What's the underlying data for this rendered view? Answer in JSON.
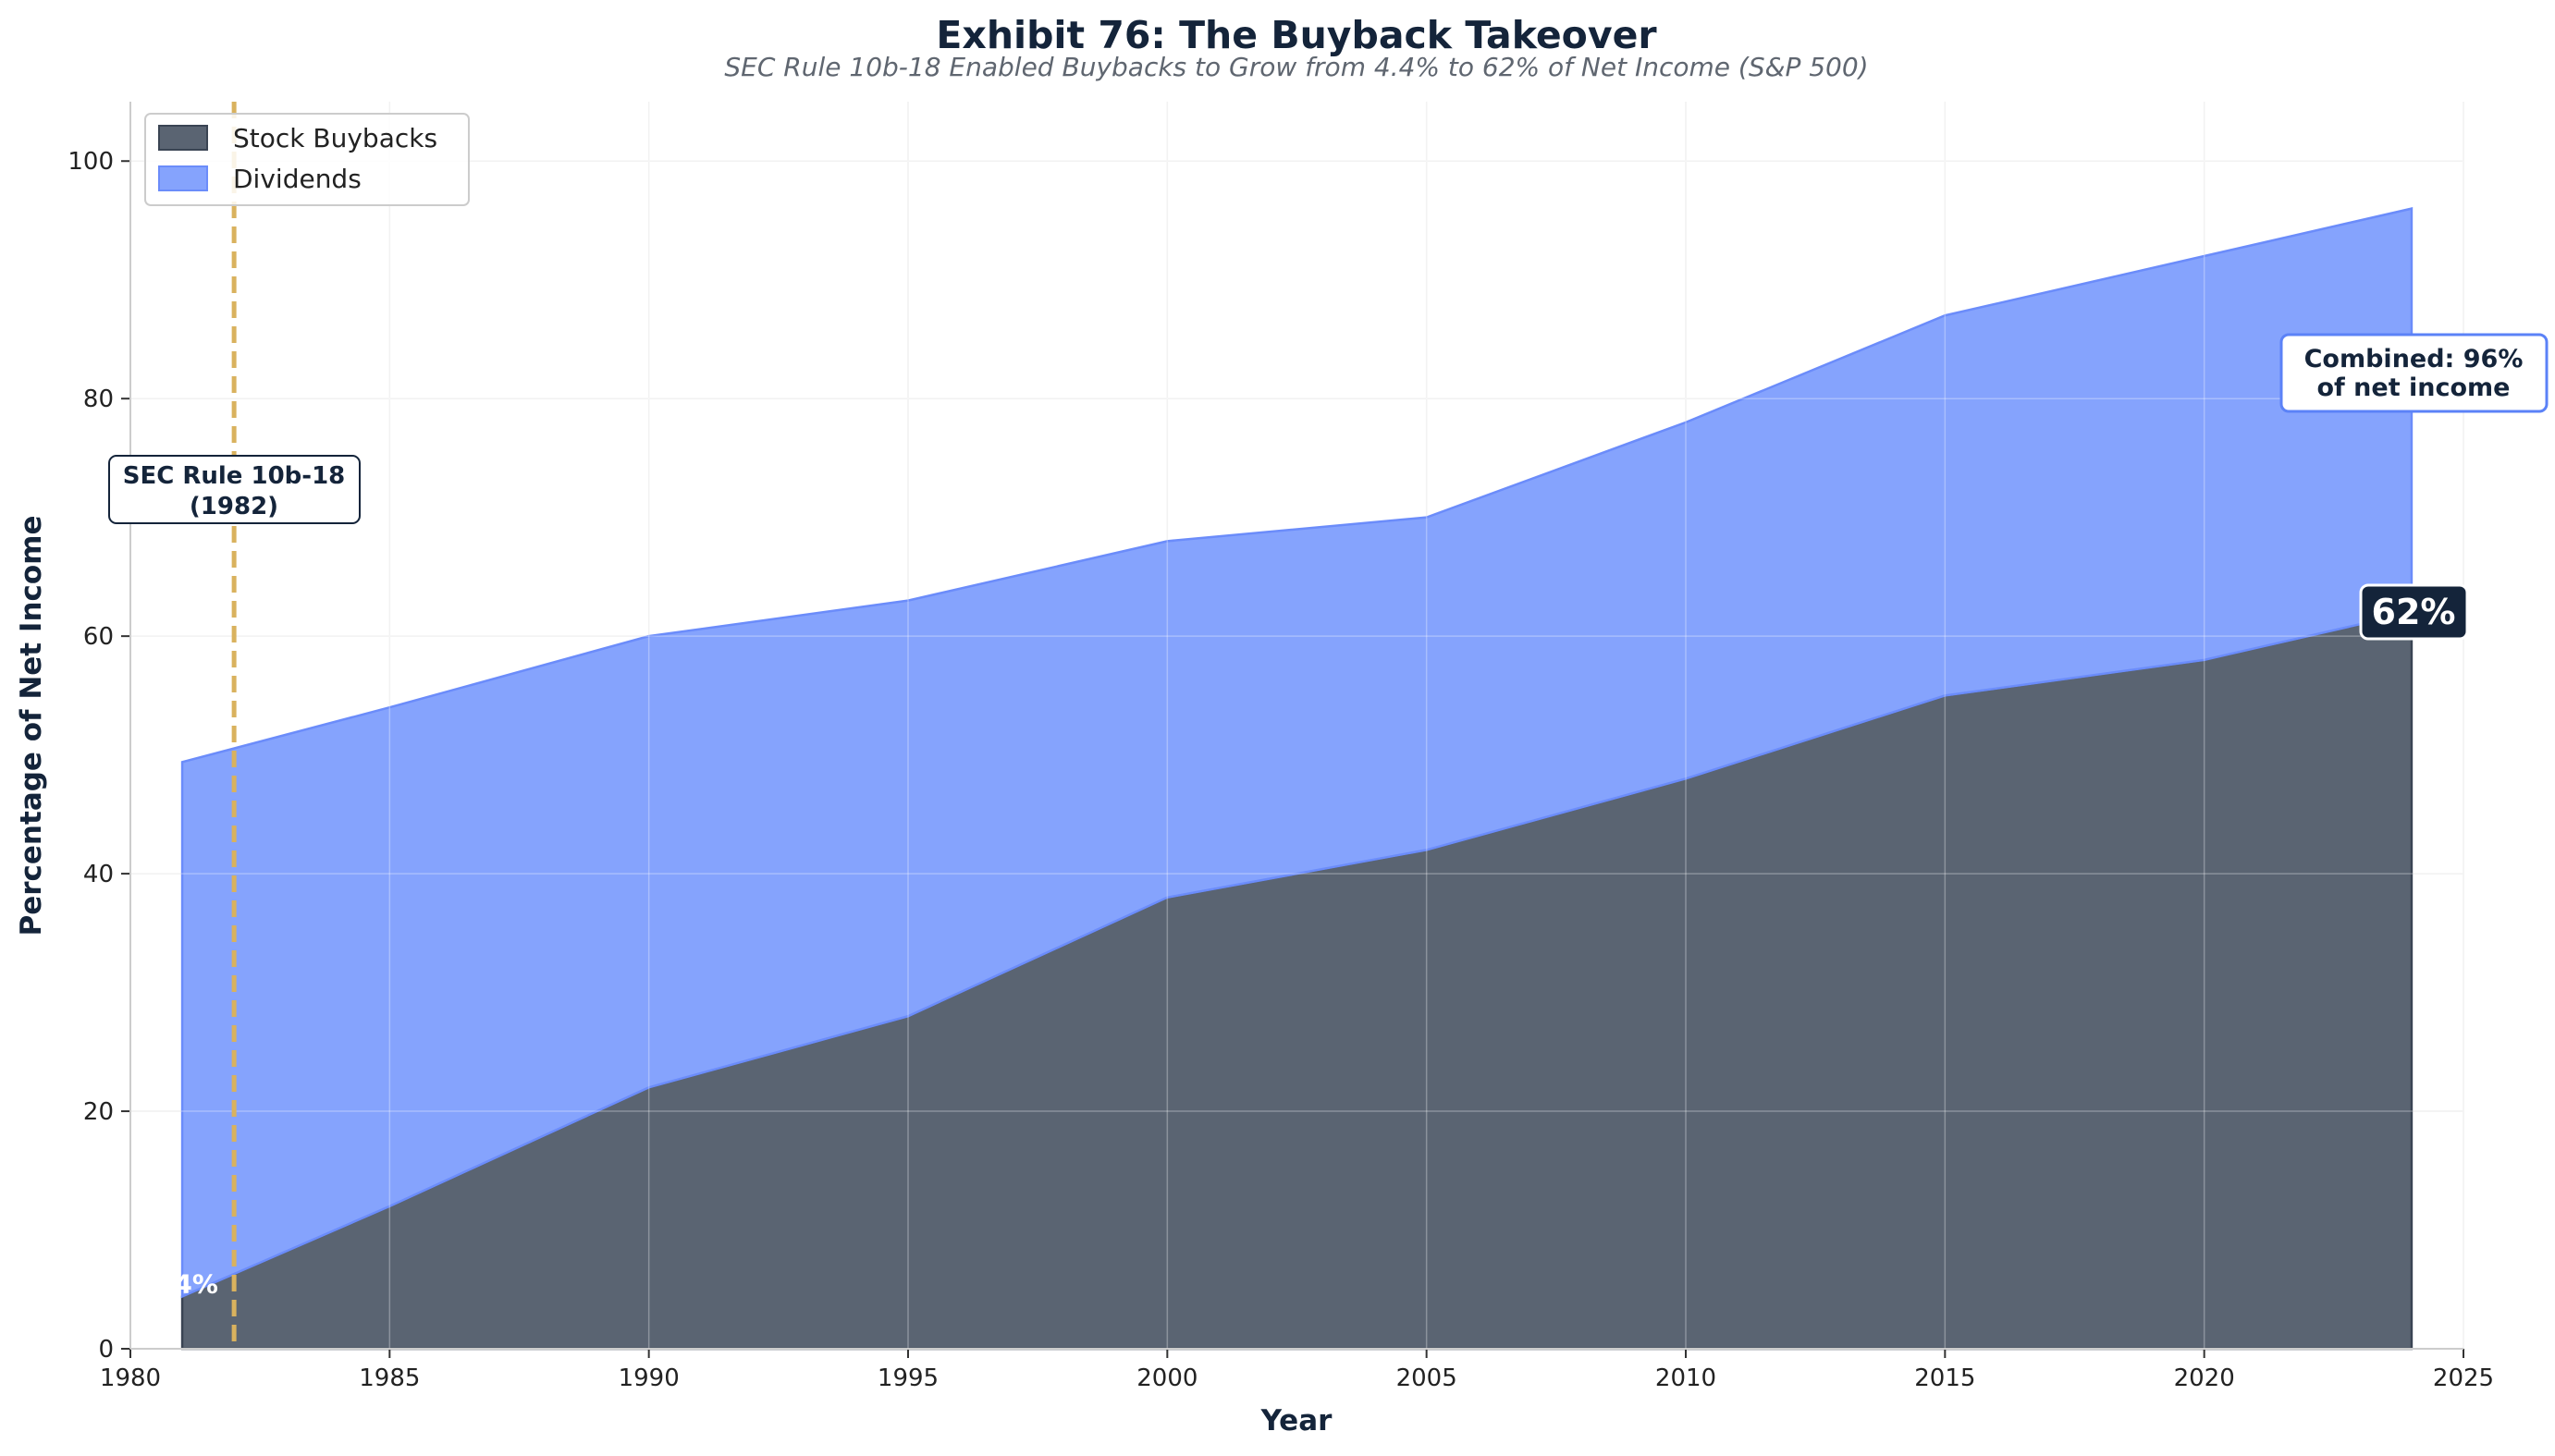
{
  "chart_data": {
    "type": "area",
    "stacked": true,
    "title": "Exhibit 76: The Buyback Takeover",
    "subtitle": "SEC Rule 10b-18 Enabled Buybacks to Grow from 4.4% to 62% of Net Income (S&P 500)",
    "xlabel": "Year",
    "ylabel": "Percentage of Net Income",
    "xlim": [
      1980,
      2025
    ],
    "ylim": [
      0,
      105
    ],
    "xticks": [
      1980,
      1985,
      1990,
      1995,
      2000,
      2005,
      2010,
      2015,
      2020,
      2025
    ],
    "yticks": [
      0,
      20,
      40,
      60,
      80,
      100
    ],
    "grid": true,
    "legend_position": "top-left",
    "x": [
      1981,
      1985,
      1990,
      1995,
      2000,
      2005,
      2010,
      2015,
      2020,
      2024
    ],
    "series": [
      {
        "name": "Stock Buybacks",
        "color": "#5a6472",
        "values": [
          4.4,
          12,
          22,
          28,
          38,
          42,
          48,
          55,
          58,
          62
        ]
      },
      {
        "name": "Dividends",
        "color": "#85a3fd",
        "values": [
          45,
          42,
          38,
          35,
          30,
          28,
          30,
          32,
          34,
          34
        ]
      }
    ],
    "vline": {
      "x": 1982,
      "color": "#d9b25e",
      "style": "dashed"
    },
    "annotations": {
      "rule_line1": "SEC Rule 10b-18",
      "rule_line2": "(1982)",
      "start_label": "4.4%",
      "end_label": "62%",
      "combined_line1": "Combined: 96%",
      "combined_line2": "of net income"
    }
  }
}
